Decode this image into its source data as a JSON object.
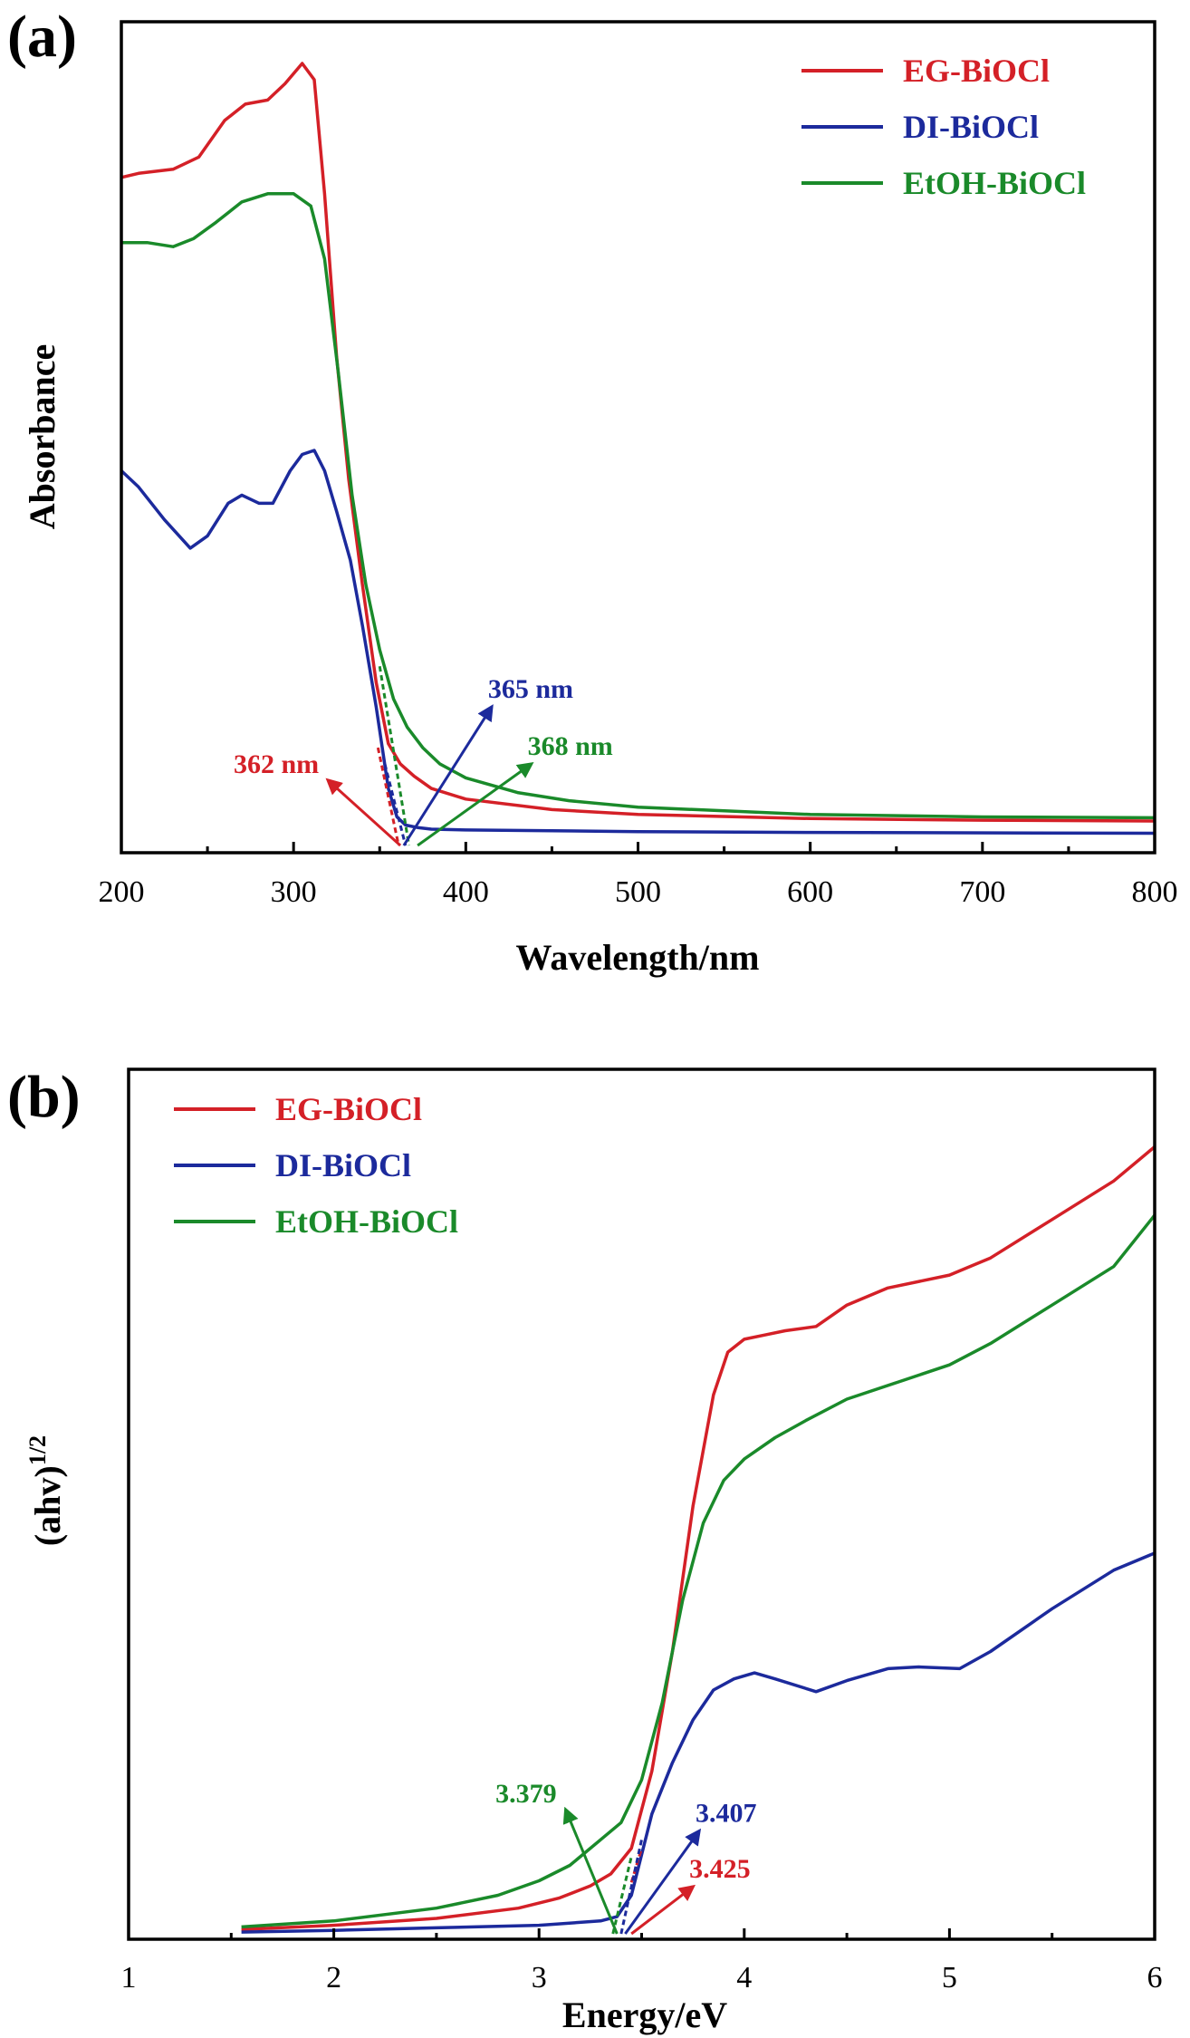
{
  "chart_data": [
    {
      "panel": "(a)",
      "type": "line",
      "title": "",
      "xlabel": "Wavelength/nm",
      "ylabel": "Absorbance",
      "xlim": [
        200,
        800
      ],
      "ylim": [
        0,
        1
      ],
      "xticks": [
        200,
        300,
        400,
        500,
        600,
        700,
        800
      ],
      "legend_position": "top-right",
      "series": [
        {
          "name": "EG-BiOCl",
          "color": "#d42027",
          "x": [
            200,
            210,
            230,
            245,
            260,
            272,
            285,
            295,
            305,
            312,
            318,
            325,
            332,
            340,
            348,
            355,
            362,
            370,
            380,
            400,
            450,
            500,
            600,
            700,
            800
          ],
          "y": [
            0.82,
            0.825,
            0.83,
            0.845,
            0.89,
            0.91,
            0.915,
            0.935,
            0.96,
            0.94,
            0.8,
            0.6,
            0.45,
            0.32,
            0.2,
            0.125,
            0.1,
            0.085,
            0.07,
            0.057,
            0.044,
            0.038,
            0.033,
            0.031,
            0.03
          ]
        },
        {
          "name": "DI-BiOCl",
          "color": "#1c2a9c",
          "x": [
            200,
            210,
            225,
            240,
            250,
            262,
            270,
            280,
            288,
            298,
            305,
            312,
            318,
            325,
            333,
            340,
            348,
            355,
            360,
            365,
            372,
            380,
            400,
            500,
            600,
            800
          ],
          "y": [
            0.46,
            0.44,
            0.4,
            0.365,
            0.38,
            0.42,
            0.43,
            0.42,
            0.42,
            0.46,
            0.48,
            0.485,
            0.46,
            0.41,
            0.35,
            0.27,
            0.17,
            0.07,
            0.035,
            0.025,
            0.022,
            0.02,
            0.019,
            0.017,
            0.016,
            0.015
          ]
        },
        {
          "name": "EtOH-BiOCl",
          "color": "#1a8a2a",
          "x": [
            200,
            215,
            230,
            242,
            255,
            270,
            285,
            300,
            310,
            318,
            326,
            334,
            342,
            350,
            358,
            366,
            375,
            385,
            400,
            430,
            460,
            500,
            600,
            700,
            800
          ],
          "y": [
            0.74,
            0.74,
            0.735,
            0.745,
            0.765,
            0.79,
            0.8,
            0.8,
            0.785,
            0.72,
            0.58,
            0.43,
            0.32,
            0.24,
            0.18,
            0.145,
            0.12,
            0.1,
            0.083,
            0.065,
            0.055,
            0.047,
            0.038,
            0.035,
            0.034
          ]
        }
      ],
      "tangents": [
        {
          "name": "EG-BiOCl",
          "color": "#d42027",
          "x1": 349,
          "y1": 0.12,
          "x2": 361,
          "y2": 0.0
        },
        {
          "name": "DI-BiOCl",
          "color": "#1c2a9c",
          "x1": 353,
          "y1": 0.1,
          "x2": 365,
          "y2": 0.0
        },
        {
          "name": "EtOH-BiOCl",
          "color": "#1a8a2a",
          "x1": 350,
          "y1": 0.22,
          "x2": 367,
          "y2": 0.0
        }
      ],
      "annotations": [
        {
          "text": "362 nm",
          "color": "#d42027",
          "x": 362,
          "y": 0.0,
          "tx": 320,
          "ty": 0.08
        },
        {
          "text": "365 nm",
          "color": "#1c2a9c",
          "x": 364,
          "y": 0.0,
          "tx": 415,
          "ty": 0.17
        },
        {
          "text": "368 nm",
          "color": "#1a8a2a",
          "x": 372,
          "y": 0.0,
          "tx": 438,
          "ty": 0.1
        }
      ]
    },
    {
      "panel": "(b)",
      "type": "line",
      "title": "",
      "xlabel": "Energy/eV",
      "ylabel": "(ahv)",
      "ylabel_superscript": "1/2",
      "xlim": [
        1,
        6
      ],
      "ylim": [
        0,
        1
      ],
      "xticks": [
        1,
        2,
        3,
        4,
        5,
        6
      ],
      "legend_position": "top-left",
      "series": [
        {
          "name": "EG-BiOCl",
          "color": "#d42027",
          "x": [
            1.55,
            2.0,
            2.5,
            2.9,
            3.1,
            3.25,
            3.35,
            3.45,
            3.55,
            3.65,
            3.75,
            3.85,
            3.92,
            4.0,
            4.1,
            4.2,
            4.35,
            4.5,
            4.7,
            5.0,
            5.2,
            5.5,
            5.8,
            6.0
          ],
          "y": [
            0.005,
            0.01,
            0.018,
            0.03,
            0.042,
            0.056,
            0.07,
            0.1,
            0.19,
            0.33,
            0.5,
            0.63,
            0.68,
            0.695,
            0.7,
            0.705,
            0.71,
            0.735,
            0.755,
            0.77,
            0.79,
            0.835,
            0.88,
            0.92
          ]
        },
        {
          "name": "DI-BiOCl",
          "color": "#1c2a9c",
          "x": [
            1.55,
            2.0,
            2.5,
            3.0,
            3.3,
            3.38,
            3.45,
            3.55,
            3.65,
            3.75,
            3.85,
            3.95,
            4.05,
            4.15,
            4.35,
            4.5,
            4.7,
            4.85,
            5.05,
            5.2,
            5.5,
            5.8,
            6.0
          ],
          "y": [
            0.002,
            0.004,
            0.007,
            0.01,
            0.015,
            0.02,
            0.045,
            0.14,
            0.2,
            0.25,
            0.285,
            0.298,
            0.305,
            0.298,
            0.283,
            0.296,
            0.31,
            0.312,
            0.31,
            0.33,
            0.38,
            0.425,
            0.445
          ]
        },
        {
          "name": "EtOH-BiOCl",
          "color": "#1a8a2a",
          "x": [
            1.55,
            2.0,
            2.5,
            2.8,
            3.0,
            3.15,
            3.3,
            3.4,
            3.5,
            3.6,
            3.7,
            3.8,
            3.9,
            4.0,
            4.15,
            4.3,
            4.5,
            4.75,
            5.0,
            5.2,
            5.5,
            5.8,
            6.0
          ],
          "y": [
            0.008,
            0.015,
            0.03,
            0.045,
            0.062,
            0.08,
            0.11,
            0.13,
            0.18,
            0.27,
            0.39,
            0.48,
            0.53,
            0.555,
            0.58,
            0.6,
            0.625,
            0.645,
            0.665,
            0.69,
            0.735,
            0.78,
            0.84
          ]
        }
      ],
      "tangents": [
        {
          "name": "EG-BiOCl",
          "color": "#d42027",
          "x1": 3.45,
          "y1": 0.06,
          "x2": 3.5,
          "y2": 0.1
        },
        {
          "name": "DI-BiOCl",
          "color": "#1c2a9c",
          "x1": 3.4,
          "y1": 0.0,
          "x2": 3.5,
          "y2": 0.11
        },
        {
          "name": "EtOH-BiOCl",
          "color": "#1a8a2a",
          "x1": 3.36,
          "y1": 0.0,
          "x2": 3.45,
          "y2": 0.09
        }
      ],
      "annotations": [
        {
          "text": "3.379",
          "color": "#1a8a2a",
          "x": 3.38,
          "y": 0.0,
          "tx": 3.13,
          "ty": 0.145
        },
        {
          "text": "3.407",
          "color": "#1c2a9c",
          "x": 3.42,
          "y": 0.0,
          "tx": 3.78,
          "ty": 0.12
        },
        {
          "text": "3.425",
          "color": "#d42027",
          "x": 3.45,
          "y": 0.0,
          "tx": 3.75,
          "ty": 0.055
        }
      ]
    }
  ]
}
